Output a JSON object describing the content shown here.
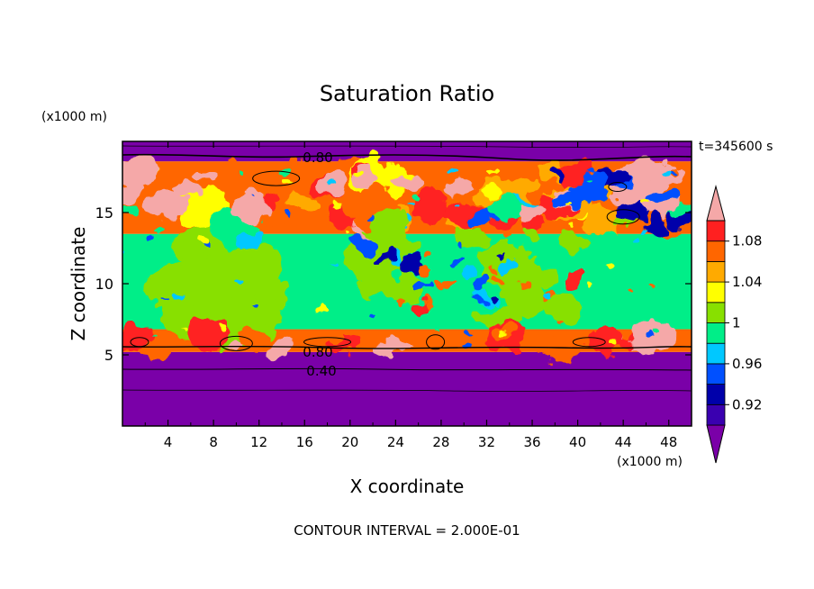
{
  "chart_data": {
    "type": "heatmap",
    "title": "Saturation Ratio",
    "xlabel": "X coordinate",
    "ylabel": "Z coordinate",
    "x_units": "(x1000 m)",
    "y_units": "(x1000 m)",
    "time_label": "t=345600 s",
    "footer": "CONTOUR INTERVAL = 2.000E-01",
    "xlim": [
      0,
      50
    ],
    "ylim": [
      0,
      20
    ],
    "x_ticks": [
      "4",
      "8",
      "12",
      "16",
      "20",
      "24",
      "28",
      "32",
      "36",
      "40",
      "44",
      "48"
    ],
    "y_ticks": [
      "5",
      "10",
      "15"
    ],
    "contour_labels": [
      "0.80",
      "0.80",
      "0.40"
    ],
    "colorbar": {
      "labels": [
        "1.08",
        "1.04",
        "1",
        "0.96",
        "0.92"
      ],
      "label_values": [
        1.08,
        1.04,
        1.0,
        0.96,
        0.92
      ],
      "min": 0.9,
      "max": 1.1,
      "step": 0.02,
      "extend": "both",
      "colors": [
        "#7a00a8",
        "#3a00b0",
        "#0000aa",
        "#0050ff",
        "#00c8ff",
        "#00ee88",
        "#88e000",
        "#ffff00",
        "#ffaa00",
        "#ff6600",
        "#ff2020",
        "#f5a8a8"
      ]
    },
    "layers": [
      {
        "band": "0 to 5.2",
        "value_range": "<0.90",
        "color": "#7a00a8"
      },
      {
        "band": "5.2 to 6.8",
        "value_range": ">1.06",
        "color": "#ff6600"
      },
      {
        "band": "6.8 to 13.5",
        "value_range": "0.98 to 1.02",
        "color": "#00ee88"
      },
      {
        "band": "13.5 to 18.6",
        "value_range": "0.96 to 1.10",
        "color": "#ff6600"
      },
      {
        "band": "18.6 to 20",
        "value_range": "<0.90",
        "color": "#7a00a8"
      }
    ]
  }
}
